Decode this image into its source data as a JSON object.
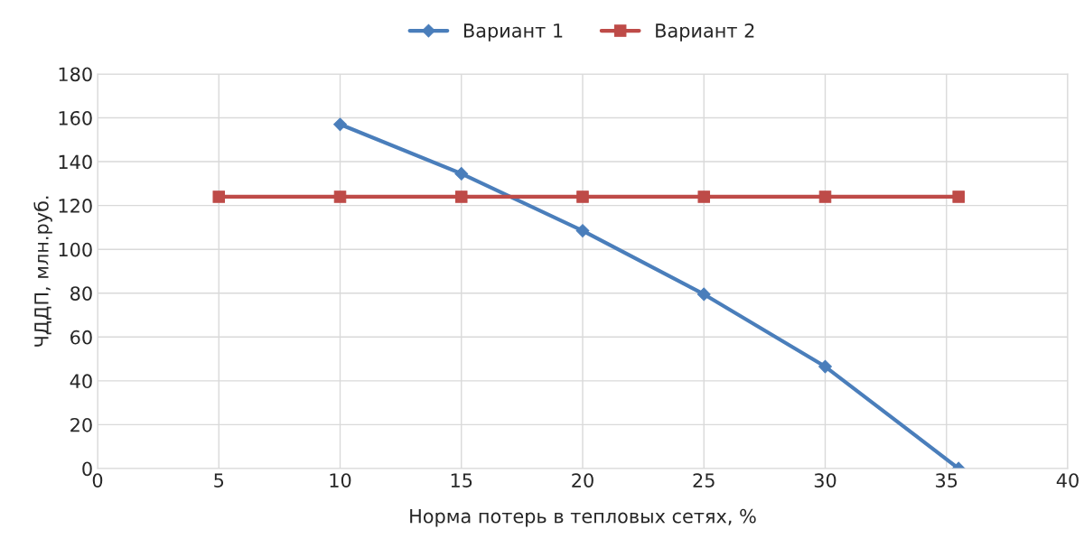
{
  "chart_data": {
    "type": "line",
    "xlabel": "Норма потерь в тепловых сетях, %",
    "ylabel": "ЧДДП, млн.руб.",
    "series": [
      {
        "name": "Вариант 1",
        "color": "#4a7ebb",
        "marker": "diamond",
        "x": [
          10,
          15,
          20,
          25,
          30,
          35.5
        ],
        "values": [
          157,
          134.5,
          108.5,
          79.5,
          46.5,
          0
        ]
      },
      {
        "name": "Вариант 2",
        "color": "#be4b48",
        "marker": "square",
        "x": [
          5,
          10,
          15,
          20,
          25,
          30,
          35.5
        ],
        "values": [
          124,
          124,
          124,
          124,
          124,
          124,
          124
        ]
      }
    ],
    "xlim": [
      0,
      40
    ],
    "xticks": [
      0,
      5,
      10,
      15,
      20,
      25,
      30,
      35,
      40
    ],
    "ylim": [
      0,
      180
    ],
    "yticks": [
      0,
      20,
      40,
      60,
      80,
      100,
      120,
      140,
      160,
      180
    ],
    "grid": true,
    "legend": "top",
    "line_style": "solid"
  }
}
